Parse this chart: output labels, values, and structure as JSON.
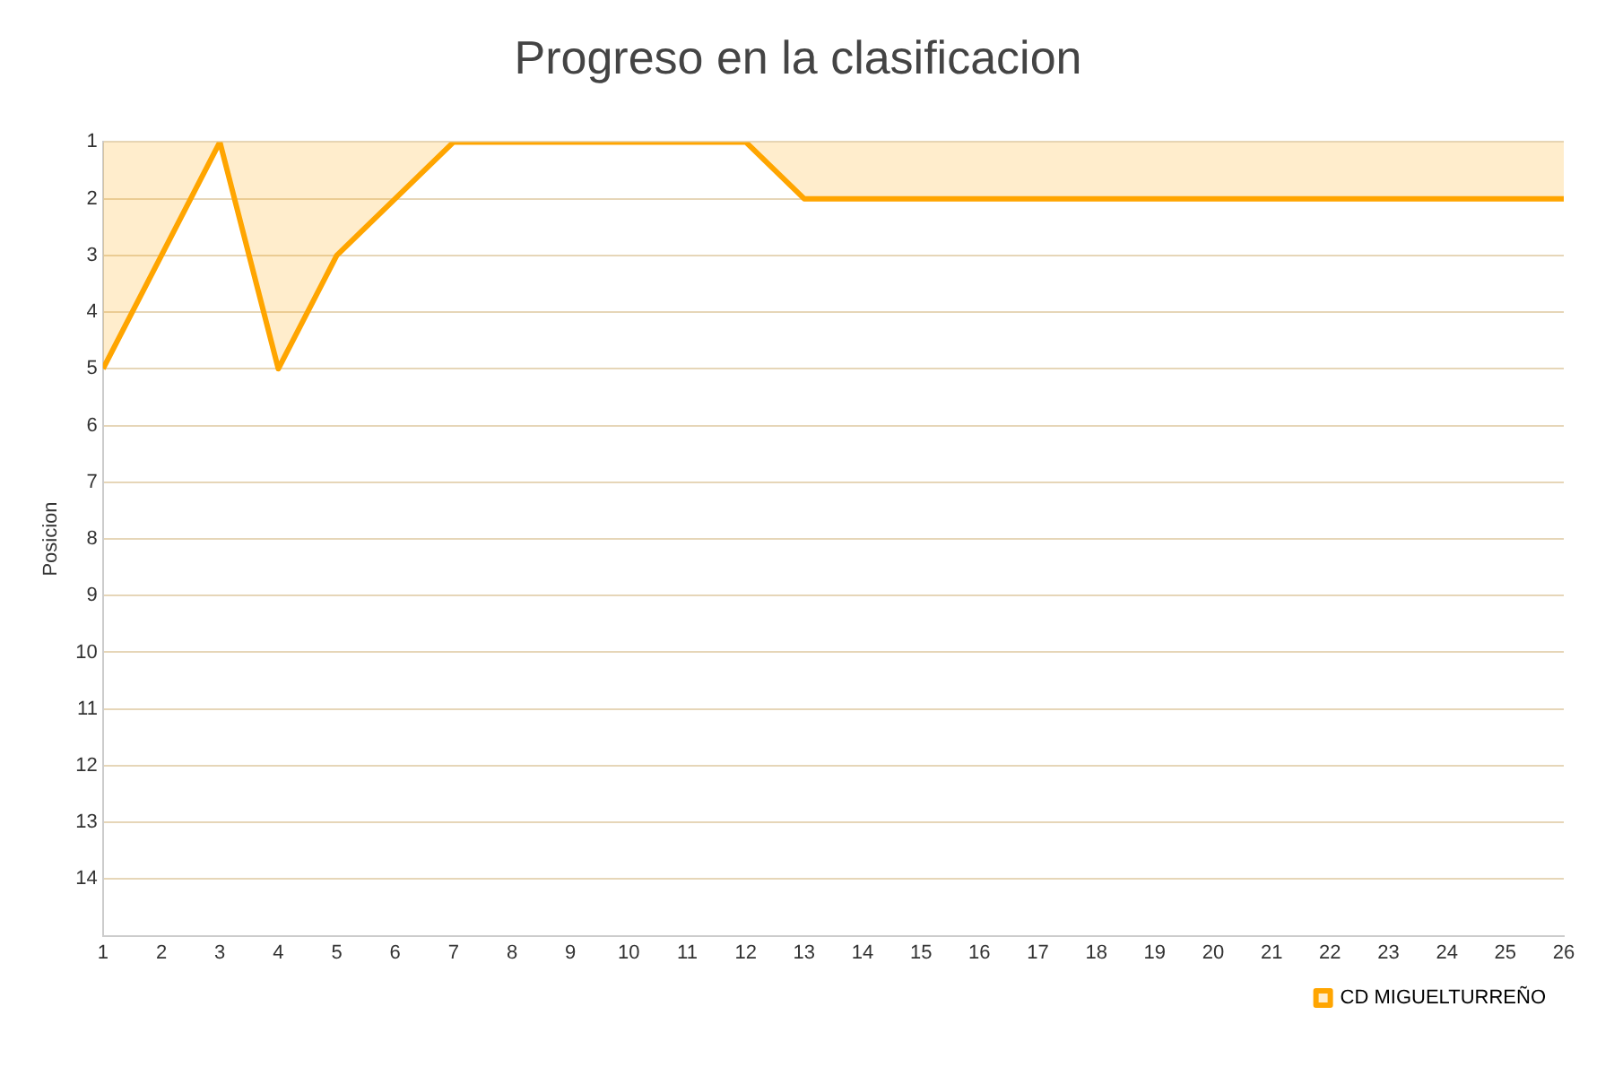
{
  "chart_data": {
    "type": "area",
    "title": "Progreso en la clasificacion",
    "ylabel": "Posicion",
    "x": [
      1,
      2,
      3,
      4,
      5,
      6,
      7,
      8,
      9,
      10,
      11,
      12,
      13,
      14,
      15,
      16,
      17,
      18,
      19,
      20,
      21,
      22,
      23,
      24,
      25,
      26
    ],
    "series": [
      {
        "name": "CD MIGUELTURREÑO",
        "color": "#ffa500",
        "values": [
          5,
          3,
          1,
          5,
          3,
          2,
          1,
          1,
          1,
          1,
          1,
          1,
          2,
          2,
          2,
          2,
          2,
          2,
          2,
          2,
          2,
          2,
          2,
          2,
          2,
          2
        ]
      }
    ],
    "xlim": [
      1,
      26
    ],
    "xticks": [
      1,
      2,
      3,
      4,
      5,
      6,
      7,
      8,
      9,
      10,
      11,
      12,
      13,
      14,
      15,
      16,
      17,
      18,
      19,
      20,
      21,
      22,
      23,
      24,
      25,
      26
    ],
    "ylim": [
      15,
      1
    ],
    "yticks": [
      1,
      2,
      3,
      4,
      5,
      6,
      7,
      8,
      9,
      10,
      11,
      12,
      13,
      14
    ],
    "grid": "y",
    "legend": "bottom right"
  }
}
